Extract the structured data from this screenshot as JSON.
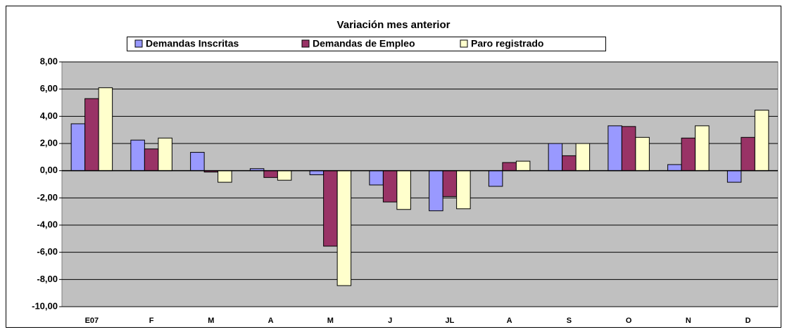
{
  "chart_data": {
    "type": "bar",
    "title": "Variación mes anterior",
    "categories": [
      "E07",
      "F",
      "M",
      "A",
      "M",
      "J",
      "JL",
      "A",
      "S",
      "O",
      "N",
      "D"
    ],
    "series": [
      {
        "name": "Demandas Inscritas",
        "color": "#9999ff",
        "values": [
          3.45,
          2.25,
          1.35,
          0.15,
          -0.3,
          -1.05,
          -2.95,
          -1.15,
          2.0,
          3.3,
          0.45,
          -0.85
        ]
      },
      {
        "name": "Demandas de Empleo",
        "color": "#993366",
        "values": [
          5.3,
          1.6,
          -0.1,
          -0.5,
          -5.55,
          -2.3,
          -1.9,
          0.6,
          1.1,
          3.25,
          2.4,
          2.45
        ]
      },
      {
        "name": "Paro registrado",
        "color": "#ffffcc",
        "values": [
          6.1,
          2.4,
          -0.85,
          -0.7,
          -8.45,
          -2.85,
          -2.8,
          0.7,
          2.0,
          2.45,
          3.3,
          4.45
        ]
      }
    ],
    "ylim": [
      -10,
      8
    ],
    "yticks": [
      {
        "value": -10,
        "label": "-10,00"
      },
      {
        "value": -8,
        "label": "-8,00"
      },
      {
        "value": -6,
        "label": "-6,00"
      },
      {
        "value": -4,
        "label": "-4,00"
      },
      {
        "value": -2,
        "label": "-2,00"
      },
      {
        "value": 0,
        "label": "0,00"
      },
      {
        "value": 2,
        "label": "2,00"
      },
      {
        "value": 4,
        "label": "4,00"
      },
      {
        "value": 6,
        "label": "6,00"
      },
      {
        "value": 8,
        "label": "8,00"
      }
    ],
    "grid": true,
    "legend": "top"
  }
}
